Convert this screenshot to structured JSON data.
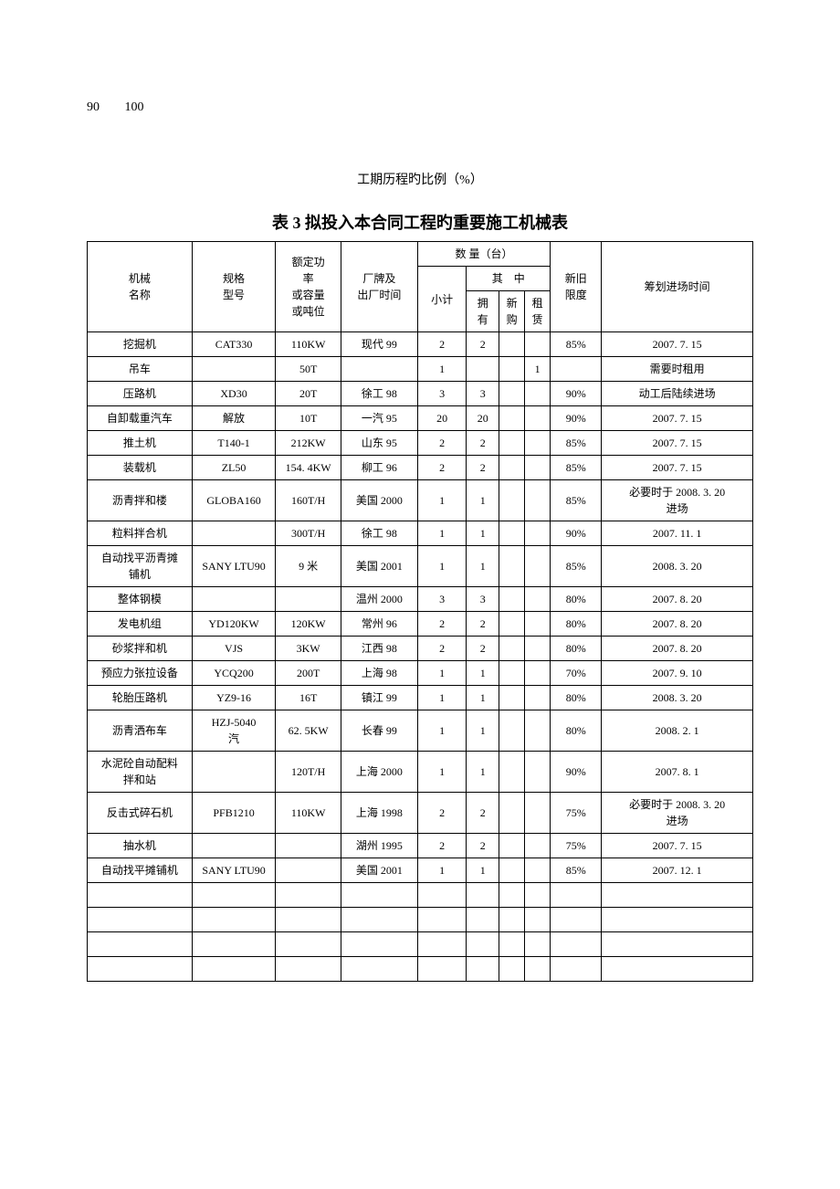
{
  "topNumbers": [
    "90",
    "100"
  ],
  "caption": "工期历程旳比例（%）",
  "title": "表 3 拟投入本合同工程旳重要施工机械表",
  "headers": {
    "name": "机械\n名称",
    "model": "规格\n型号",
    "power": "额定功\n率\n或容量\n或吨位",
    "brand": "厂牌及\n出厂时间",
    "qtyGroup": "数 量（台）",
    "subtotal": "小计",
    "among": "其　中",
    "own": "拥\n有",
    "buy": "新\n购",
    "rent": "租\n赁",
    "condition": "新旧\n限度",
    "plan": "筹划进场时间"
  },
  "rows": [
    {
      "name": "挖掘机",
      "model": "CAT330",
      "power": "110KW",
      "brand": "现代 99",
      "sub": "2",
      "own": "2",
      "buy": "",
      "rent": "",
      "cond": "85%",
      "plan": "2007. 7. 15",
      "tall": false
    },
    {
      "name": "吊车",
      "model": "",
      "power": "50T",
      "brand": "",
      "sub": "1",
      "own": "",
      "buy": "",
      "rent": "1",
      "cond": "",
      "plan": "需要时租用",
      "tall": false
    },
    {
      "name": "压路机",
      "model": "XD30",
      "power": "20T",
      "brand": "徐工 98",
      "sub": "3",
      "own": "3",
      "buy": "",
      "rent": "",
      "cond": "90%",
      "plan": "动工后陆续进场",
      "tall": false
    },
    {
      "name": "自卸载重汽车",
      "model": "解放",
      "power": "10T",
      "brand": "一汽 95",
      "sub": "20",
      "own": "20",
      "buy": "",
      "rent": "",
      "cond": "90%",
      "plan": "2007. 7. 15",
      "tall": false
    },
    {
      "name": "推土机",
      "model": "T140-1",
      "power": "212KW",
      "brand": "山东 95",
      "sub": "2",
      "own": "2",
      "buy": "",
      "rent": "",
      "cond": "85%",
      "plan": "2007. 7. 15",
      "tall": false
    },
    {
      "name": "装载机",
      "model": "ZL50",
      "power": "154. 4KW",
      "brand": "柳工 96",
      "sub": "2",
      "own": "2",
      "buy": "",
      "rent": "",
      "cond": "85%",
      "plan": "2007. 7. 15",
      "tall": false
    },
    {
      "name": "沥青拌和楼",
      "model": "GLOBA160",
      "power": "160T/H",
      "brand": "美国 2000",
      "sub": "1",
      "own": "1",
      "buy": "",
      "rent": "",
      "cond": "85%",
      "plan": "必要时于 2008. 3. 20\n进场",
      "tall": true
    },
    {
      "name": "粒料拌合机",
      "model": "",
      "power": "300T/H",
      "brand": "徐工 98",
      "sub": "1",
      "own": "1",
      "buy": "",
      "rent": "",
      "cond": "90%",
      "plan": "2007. 11. 1",
      "tall": false
    },
    {
      "name": "自动找平沥青摊\n铺机",
      "model": "SANY LTU90",
      "power": "9 米",
      "brand": "美国 2001",
      "sub": "1",
      "own": "1",
      "buy": "",
      "rent": "",
      "cond": "85%",
      "plan": "2008. 3. 20",
      "tall": true
    },
    {
      "name": "整体钢模",
      "model": "",
      "power": "",
      "brand": "温州 2000",
      "sub": "3",
      "own": "3",
      "buy": "",
      "rent": "",
      "cond": "80%",
      "plan": "2007. 8. 20",
      "tall": false
    },
    {
      "name": "发电机组",
      "model": "YD120KW",
      "power": "120KW",
      "brand": "常州 96",
      "sub": "2",
      "own": "2",
      "buy": "",
      "rent": "",
      "cond": "80%",
      "plan": "2007. 8. 20",
      "tall": false
    },
    {
      "name": "砂浆拌和机",
      "model": "VJS",
      "power": "3KW",
      "brand": "江西 98",
      "sub": "2",
      "own": "2",
      "buy": "",
      "rent": "",
      "cond": "80%",
      "plan": "2007. 8. 20",
      "tall": false
    },
    {
      "name": "预应力张拉设备",
      "model": "YCQ200",
      "power": "200T",
      "brand": "上海 98",
      "sub": "1",
      "own": "1",
      "buy": "",
      "rent": "",
      "cond": "70%",
      "plan": "2007. 9. 10",
      "tall": false
    },
    {
      "name": "轮胎压路机",
      "model": "YZ9-16",
      "power": "16T",
      "brand": "镇江 99",
      "sub": "1",
      "own": "1",
      "buy": "",
      "rent": "",
      "cond": "80%",
      "plan": "2008. 3. 20",
      "tall": false
    },
    {
      "name": "沥青洒布车",
      "model": "HZJ-5040\n汽",
      "power": "62. 5KW",
      "brand": "长春 99",
      "sub": "1",
      "own": "1",
      "buy": "",
      "rent": "",
      "cond": "80%",
      "plan": "2008. 2. 1",
      "tall": true
    },
    {
      "name": "水泥砼自动配料\n拌和站",
      "model": "",
      "power": "120T/H",
      "brand": "上海 2000",
      "sub": "1",
      "own": "1",
      "buy": "",
      "rent": "",
      "cond": "90%",
      "plan": "2007. 8. 1",
      "tall": true
    },
    {
      "name": "反击式碎石机",
      "model": "PFB1210",
      "power": "110KW",
      "brand": "上海 1998",
      "sub": "2",
      "own": "2",
      "buy": "",
      "rent": "",
      "cond": "75%",
      "plan": "必要时于 2008. 3. 20\n进场",
      "tall": true
    },
    {
      "name": "抽水机",
      "model": "",
      "power": "",
      "brand": "湖州 1995",
      "sub": "2",
      "own": "2",
      "buy": "",
      "rent": "",
      "cond": "75%",
      "plan": "2007. 7. 15",
      "tall": false
    },
    {
      "name": "自动找平摊铺机",
      "model": "SANY LTU90",
      "power": "",
      "brand": "美国 2001",
      "sub": "1",
      "own": "1",
      "buy": "",
      "rent": "",
      "cond": "85%",
      "plan": "2007. 12. 1",
      "tall": false
    }
  ],
  "emptyRows": 4,
  "colors": {
    "border": "#000000",
    "text": "#000000",
    "background": "#ffffff"
  },
  "fontsize": {
    "body": 14,
    "title": 18,
    "table": 12
  }
}
